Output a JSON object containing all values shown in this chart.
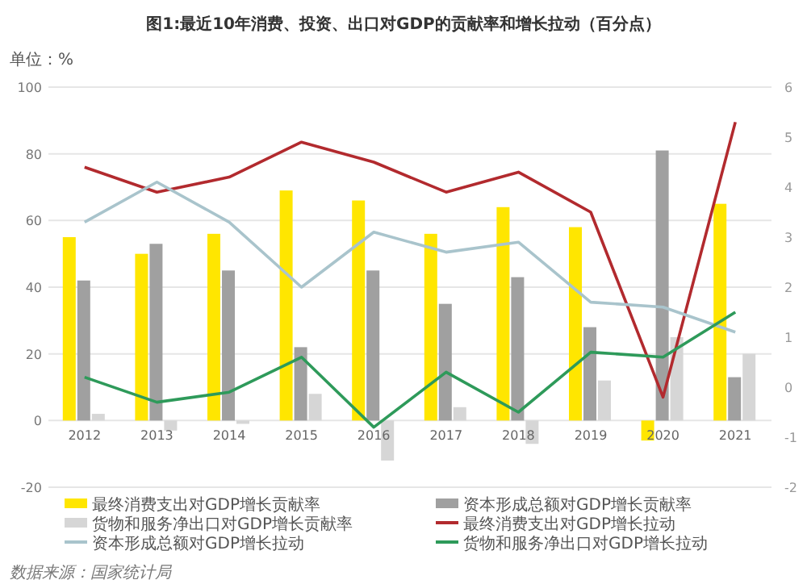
{
  "chart_data": {
    "type": "bar",
    "title": "图1:最近10年消费、投资、出口对GDP的贡献率和增长拉动（百分点）",
    "ylabel": "单位：%",
    "categories": [
      "2012",
      "2013",
      "2014",
      "2015",
      "2016",
      "2017",
      "2018",
      "2019",
      "2020",
      "2021"
    ],
    "series": [
      {
        "name": "最终消费支出对GDP增长贡献率",
        "color": "#ffe600",
        "values": [
          55,
          50,
          56,
          69,
          66,
          56,
          64,
          58,
          -6,
          65
        ]
      },
      {
        "name": "资本形成总额对GDP增长贡献率",
        "color": "#a0a0a0",
        "values": [
          42,
          53,
          45,
          22,
          45,
          35,
          43,
          28,
          81,
          13
        ]
      },
      {
        "name": "货物和服务净出口对GDP增长贡献率",
        "color": "#d6d6d6",
        "values": [
          2,
          -3,
          -1,
          8,
          -12,
          4,
          -7,
          12,
          25,
          20
        ]
      },
      {
        "name": "最终消费支出对GDP增长拉动",
        "type": "line",
        "axis": "y2",
        "color": "#b22a2e",
        "values": [
          4.4,
          3.9,
          4.2,
          4.9,
          4.5,
          3.9,
          4.3,
          3.5,
          -0.2,
          5.3
        ]
      },
      {
        "name": "资本形成总额对GDP增长拉动",
        "type": "line",
        "axis": "y2",
        "color": "#a9c4cc",
        "values": [
          3.3,
          4.1,
          3.3,
          2.0,
          3.1,
          2.7,
          2.9,
          1.7,
          1.6,
          1.1
        ]
      },
      {
        "name": "货物和服务净出口对GDP增长拉动",
        "type": "line",
        "axis": "y2",
        "color": "#2e9a5a",
        "values": [
          0.2,
          -0.3,
          -0.1,
          0.6,
          -0.8,
          0.3,
          -0.5,
          0.7,
          0.6,
          1.5
        ]
      }
    ],
    "ylim": [
      -20,
      100
    ],
    "yticks": [
      -20,
      0,
      20,
      40,
      60,
      80,
      100
    ],
    "y2lim": [
      -2,
      6
    ],
    "y2ticks": [
      -2,
      -1,
      0,
      1,
      2,
      3,
      4,
      5,
      6
    ],
    "grid": "y",
    "legend": "bottom",
    "annotations": [
      "数据来源：国家统计局"
    ]
  }
}
